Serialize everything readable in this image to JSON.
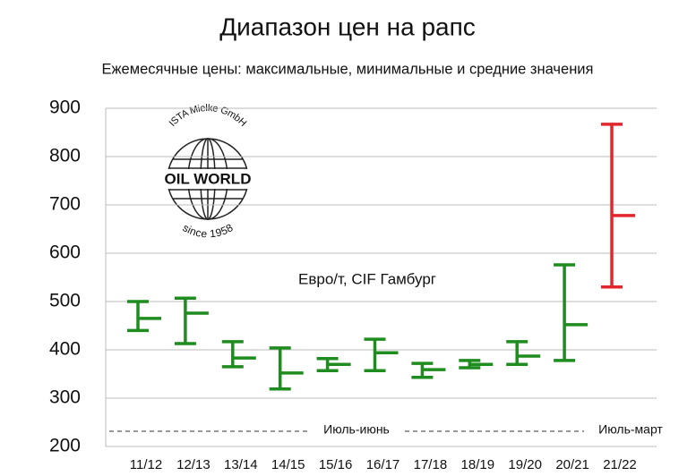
{
  "chart_data": {
    "type": "hilo",
    "title": "Диапазон цен на рапс",
    "subtitle": "Ежемесячные цены: максимальные, минимальные и средние значения",
    "categories": [
      "11/12",
      "12/13",
      "13/14",
      "14/15",
      "15/16",
      "16/17",
      "17/18",
      "18/19",
      "19/20",
      "20/21",
      "21/22"
    ],
    "high": [
      500,
      507,
      417,
      404,
      382,
      422,
      372,
      378,
      417,
      576,
      867
    ],
    "low": [
      440,
      413,
      365,
      319,
      357,
      357,
      343,
      363,
      370,
      378,
      530
    ],
    "mean": [
      465,
      476,
      383,
      352,
      370,
      394,
      359,
      370,
      387,
      452,
      678
    ],
    "colors": [
      "#1e8c1e",
      "#1e8c1e",
      "#1e8c1e",
      "#1e8c1e",
      "#1e8c1e",
      "#1e8c1e",
      "#1e8c1e",
      "#1e8c1e",
      "#1e8c1e",
      "#1e8c1e",
      "#e3262b"
    ],
    "ylim": [
      200,
      900
    ],
    "yticks": [
      200,
      300,
      400,
      500,
      600,
      700,
      800,
      900
    ],
    "grid": true,
    "unit_label": "Евро/т, CIF Гамбург",
    "period_labels": [
      "Июль-июнь",
      "Июль-март"
    ],
    "logo": {
      "top": "ISTA Mielke GmbH",
      "center": "OIL WORLD",
      "bottom": "since 1958"
    }
  }
}
